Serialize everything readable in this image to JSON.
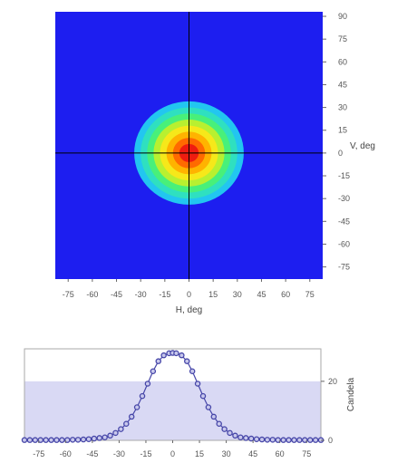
{
  "chart_data": [
    {
      "type": "heatmap",
      "title": "",
      "xlabel": "H, deg",
      "ylabel": "V, deg",
      "xlim": [
        -83,
        83
      ],
      "ylim": [
        -83,
        93
      ],
      "x_ticks": [
        -75,
        -60,
        -45,
        -30,
        -15,
        0,
        15,
        30,
        45,
        60,
        75
      ],
      "y_ticks": [
        90,
        75,
        60,
        45,
        30,
        15,
        0,
        -15,
        -30,
        -45,
        -60,
        -75
      ],
      "crosshair": {
        "h": 0,
        "v": 0
      },
      "peak_center": {
        "h": 0,
        "v": 0
      },
      "contour_levels": [
        {
          "radius_deg": 34,
          "color": "#22c6f0"
        },
        {
          "radius_deg": 30,
          "color": "#2fe0c0"
        },
        {
          "radius_deg": 26,
          "color": "#48f07a"
        },
        {
          "radius_deg": 22,
          "color": "#b8f030"
        },
        {
          "radius_deg": 18,
          "color": "#f6e81a"
        },
        {
          "radius_deg": 14,
          "color": "#ffb300"
        },
        {
          "radius_deg": 10,
          "color": "#ff6a00"
        },
        {
          "radius_deg": 6,
          "color": "#ee1c10"
        }
      ],
      "colors": {
        "background": "#1d1ef0",
        "crosshair": "#000000"
      }
    },
    {
      "type": "line",
      "title": "",
      "xlabel": "",
      "ylabel": "Candela",
      "xlim": [
        -83,
        83
      ],
      "ylim": [
        0,
        31
      ],
      "x_ticks": [
        -75,
        -60,
        -45,
        -30,
        -15,
        0,
        15,
        30,
        45,
        60,
        75
      ],
      "y_ticks": [
        0,
        20
      ],
      "band_level": 20,
      "x": [
        -83,
        -80,
        -77,
        -74,
        -71,
        -68,
        -65,
        -62,
        -59,
        -56,
        -53,
        -50,
        -47,
        -44,
        -41,
        -38,
        -35,
        -32,
        -29,
        -26,
        -23,
        -20,
        -17,
        -14,
        -11,
        -8,
        -5,
        -2,
        0,
        2,
        5,
        8,
        11,
        14,
        17,
        20,
        23,
        26,
        29,
        32,
        35,
        38,
        41,
        44,
        47,
        50,
        53,
        56,
        59,
        62,
        65,
        68,
        71,
        74,
        77,
        80,
        83
      ],
      "series": [
        {
          "values": [
            0.1,
            0.1,
            0.1,
            0.1,
            0.1,
            0.1,
            0.1,
            0.1,
            0.1,
            0.2,
            0.2,
            0.3,
            0.4,
            0.6,
            0.8,
            1.0,
            1.6,
            2.5,
            3.8,
            5.6,
            8.0,
            11.2,
            15.0,
            19.2,
            23.4,
            26.8,
            28.8,
            29.5,
            29.6,
            29.5,
            28.8,
            26.8,
            23.4,
            19.2,
            15.0,
            11.2,
            8.0,
            5.6,
            3.8,
            2.5,
            1.6,
            1.0,
            0.8,
            0.6,
            0.4,
            0.3,
            0.2,
            0.2,
            0.1,
            0.1,
            0.1,
            0.1,
            0.1,
            0.1,
            0.1,
            0.1,
            0.1
          ]
        }
      ],
      "colors": {
        "marker": "#4646a8",
        "band": "#d9d9f4",
        "frame": "#aaaaaa"
      }
    }
  ]
}
